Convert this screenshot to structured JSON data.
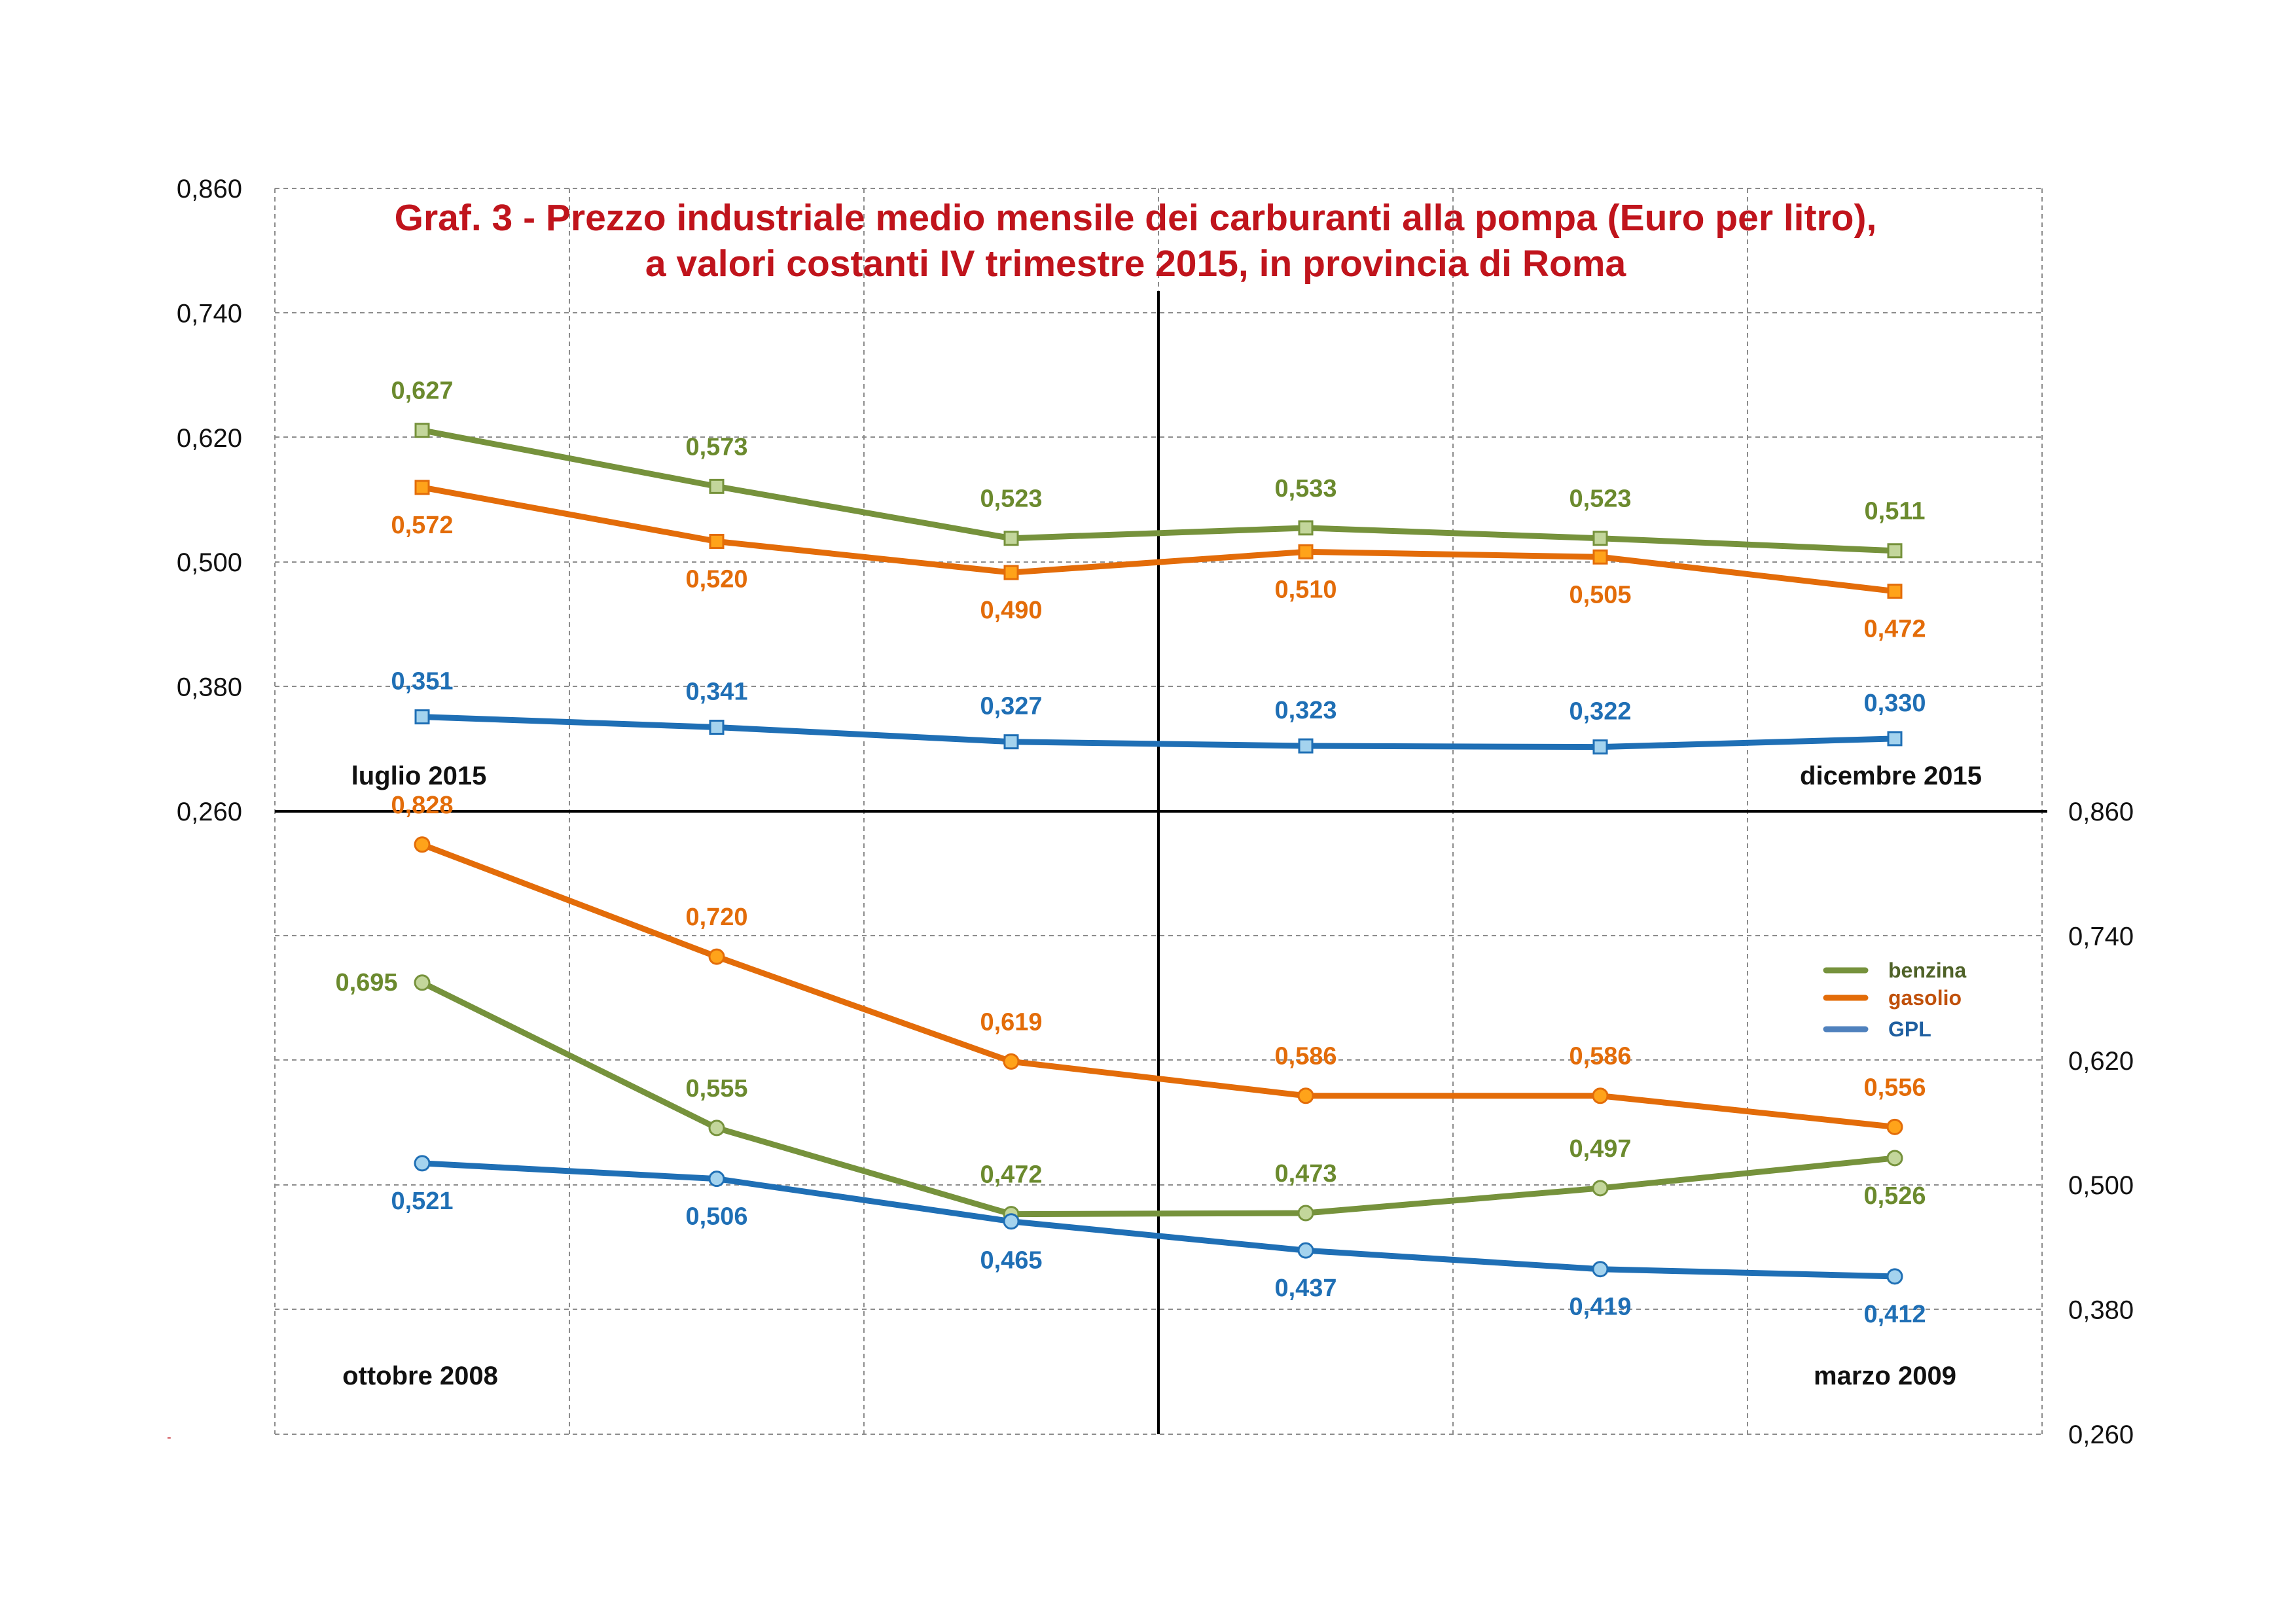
{
  "chart_data": [
    {
      "type": "line",
      "panel": "top",
      "title_lines": [
        "Graf. 3 - Prezzo industriale medio mensile dei carburanti alla pompa (Euro per litro),",
        "a valori costanti IV trimestre 2015, in provincia di Roma"
      ],
      "period_start": "luglio 2015",
      "period_end": "dicembre 2015",
      "yticks": [
        "0,860",
        "0,740",
        "0,620",
        "0,500",
        "0,380",
        "0,260"
      ],
      "ylim": [
        0.26,
        0.86
      ],
      "y_axis_side": "left",
      "grid": true,
      "marker": "square",
      "series": [
        {
          "name": "benzina",
          "values": [
            0.627,
            0.573,
            0.523,
            0.533,
            0.523,
            0.511
          ],
          "labels": [
            "0,627",
            "0,573",
            "0,523",
            "0,533",
            "0,523",
            "0,511"
          ],
          "color": "#76923c",
          "marker_fill": "#c3d69b"
        },
        {
          "name": "gasolio",
          "values": [
            0.572,
            0.52,
            0.49,
            0.51,
            0.505,
            0.472
          ],
          "labels": [
            "0,572",
            "0,520",
            "0,490",
            "0,510",
            "0,505",
            "0,472"
          ],
          "color": "#e36c09",
          "marker_fill": "#ffa31a"
        },
        {
          "name": "GPL",
          "values": [
            0.351,
            0.341,
            0.327,
            0.323,
            0.322,
            0.33
          ],
          "labels": [
            "0,351",
            "0,341",
            "0,327",
            "0,323",
            "0,322",
            "0,330"
          ],
          "color": "#1f6fb5",
          "marker_fill": "#a4d3ee"
        }
      ]
    },
    {
      "type": "line",
      "panel": "bottom",
      "period_start": "ottobre 2008",
      "period_end": "marzo 2009",
      "yticks": [
        "0,860",
        "0,740",
        "0,620",
        "0,500",
        "0,380",
        "0,260"
      ],
      "ylim": [
        0.26,
        0.86
      ],
      "y_axis_side": "right",
      "grid": true,
      "marker": "circle",
      "series": [
        {
          "name": "benzina",
          "values": [
            0.695,
            0.555,
            0.472,
            0.473,
            0.497,
            0.526
          ],
          "labels": [
            "0,695",
            "0,555",
            "0,472",
            "0,473",
            "0,497",
            "0,526"
          ],
          "color": "#76923c",
          "marker_fill": "#c3d69b"
        },
        {
          "name": "gasolio",
          "values": [
            0.828,
            0.72,
            0.619,
            0.586,
            0.586,
            0.556
          ],
          "labels": [
            "0,828",
            "0,720",
            "0,619",
            "0,586",
            "0,586",
            "0,556"
          ],
          "color": "#e36c09",
          "marker_fill": "#ffa31a"
        },
        {
          "name": "GPL",
          "values": [
            0.521,
            0.506,
            0.465,
            0.437,
            0.419,
            0.412
          ],
          "labels": [
            "0,521",
            "0,506",
            "0,465",
            "0,437",
            "0,419",
            "0,412"
          ],
          "color": "#1f6fb5",
          "marker_fill": "#a4d3ee"
        }
      ]
    }
  ],
  "legend": {
    "position": "bottom-panel-right",
    "items": [
      {
        "label": "benzina",
        "color": "#76923c",
        "text_color": "#4f6228"
      },
      {
        "label": "gasolio",
        "color": "#e36c09",
        "text_color": "#c0500a"
      },
      {
        "label": "GPL",
        "color": "#4f81bd",
        "text_color": "#1f5fa0"
      }
    ]
  },
  "colors": {
    "title": "#c0141c",
    "label_benzina": "#6b8a2e",
    "label_gasolio": "#e36c09",
    "label_GPL": "#1f6fb5"
  }
}
